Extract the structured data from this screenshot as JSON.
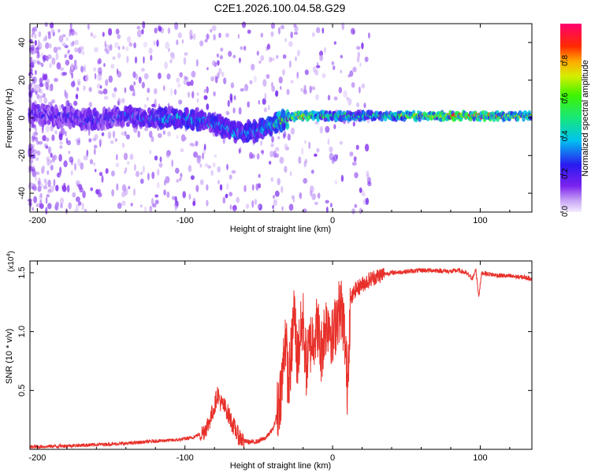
{
  "title": "C2E1.2026.100.04.58.G29",
  "chart_data": [
    {
      "type": "heatmap",
      "name": "spectrogram",
      "xlabel": "Height of straight line (km)",
      "ylabel": "Frequency (Hz)",
      "xlim": [
        -205,
        135
      ],
      "ylim": [
        -50,
        50
      ],
      "xticks": [
        -200,
        -100,
        0,
        100
      ],
      "yticks": [
        -40,
        -20,
        0,
        20,
        40
      ],
      "xtick_labels": [
        "-200",
        "-100",
        "0",
        "100"
      ],
      "ytick_labels": [
        "-40",
        "-20",
        "0",
        "20",
        "40"
      ],
      "colorbar": {
        "label": "Normalized spectral amplitude",
        "range": [
          0,
          1
        ],
        "ticks": [
          0.0,
          0.2,
          0.4,
          0.6,
          0.8
        ],
        "tick_labels": [
          "0.0",
          "0.2",
          "0.4",
          "0.6",
          "0.8"
        ],
        "colormap": "rainbow (white-violet-blue-cyan-green-yellow-red-magenta)"
      },
      "ridge": [
        {
          "x": -200,
          "f": 2,
          "amp": 0.25
        },
        {
          "x": -180,
          "f": 0,
          "amp": 0.25
        },
        {
          "x": -160,
          "f": -1,
          "amp": 0.28
        },
        {
          "x": -140,
          "f": 1,
          "amp": 0.3
        },
        {
          "x": -120,
          "f": 0,
          "amp": 0.35
        },
        {
          "x": -100,
          "f": 0,
          "amp": 0.4
        },
        {
          "x": -80,
          "f": -3,
          "amp": 0.4
        },
        {
          "x": -65,
          "f": -8,
          "amp": 0.35
        },
        {
          "x": -50,
          "f": -7,
          "amp": 0.4
        },
        {
          "x": -40,
          "f": -3,
          "amp": 0.5
        },
        {
          "x": -30,
          "f": 0,
          "amp": 0.7
        },
        {
          "x": -20,
          "f": 1,
          "amp": 0.9
        },
        {
          "x": -10,
          "f": 1,
          "amp": 0.6
        },
        {
          "x": 0,
          "f": 1,
          "amp": 0.6
        },
        {
          "x": 20,
          "f": 1,
          "amp": 0.5
        },
        {
          "x": 40,
          "f": 1,
          "amp": 0.6
        },
        {
          "x": 60,
          "f": 1,
          "amp": 0.8
        },
        {
          "x": 80,
          "f": 1,
          "amp": 0.9
        },
        {
          "x": 95,
          "f": 1,
          "amp": 0.9
        },
        {
          "x": 110,
          "f": 1,
          "amp": 0.8
        },
        {
          "x": 130,
          "f": 1,
          "amp": 0.65
        }
      ]
    },
    {
      "type": "line",
      "name": "snr",
      "xlabel": "Height of straight line (km)",
      "ylabel": "SNR (10 * v/v)",
      "multiplier_label": "(x10",
      "multiplier_exponent": "4",
      "multiplier_close": ")",
      "xlim": [
        -205,
        135
      ],
      "ylim": [
        0,
        1.6
      ],
      "xticks": [
        -200,
        -100,
        0,
        100
      ],
      "yticks": [
        0.5,
        1.0,
        1.5
      ],
      "xtick_labels": [
        "-200",
        "-100",
        "0",
        "100"
      ],
      "ytick_labels": [
        "0.5",
        "1.0",
        "1.5"
      ],
      "color": "#e8302a",
      "series": [
        {
          "name": "SNR",
          "x": [
            -205,
            -180,
            -160,
            -140,
            -120,
            -105,
            -95,
            -88,
            -84,
            -80,
            -78,
            -76,
            -72,
            -68,
            -64,
            -60,
            -55,
            -50,
            -45,
            -40,
            -37,
            -34,
            -32,
            -30,
            -28,
            -26,
            -24,
            -22,
            -20,
            -18,
            -15,
            -12,
            -10,
            -8,
            -5,
            -2,
            0,
            3,
            6,
            8,
            10,
            12,
            15,
            20,
            25,
            30,
            35,
            40,
            50,
            60,
            70,
            80,
            85,
            90,
            95,
            97,
            99,
            101,
            105,
            110,
            120,
            130,
            135
          ],
          "y": [
            0.02,
            0.03,
            0.04,
            0.05,
            0.07,
            0.08,
            0.1,
            0.14,
            0.22,
            0.36,
            0.48,
            0.4,
            0.34,
            0.22,
            0.12,
            0.07,
            0.06,
            0.07,
            0.1,
            0.18,
            0.35,
            0.6,
            1.0,
            0.55,
            0.8,
            1.2,
            0.75,
            0.95,
            1.1,
            0.7,
            0.9,
            1.0,
            1.05,
            0.8,
            1.05,
            1.1,
            0.9,
            1.15,
            1.2,
            1.0,
            0.55,
            1.25,
            1.35,
            1.4,
            1.44,
            1.47,
            1.49,
            1.5,
            1.51,
            1.52,
            1.52,
            1.51,
            1.52,
            1.5,
            1.45,
            1.53,
            1.3,
            1.5,
            1.49,
            1.48,
            1.47,
            1.46,
            1.45
          ]
        }
      ]
    }
  ]
}
